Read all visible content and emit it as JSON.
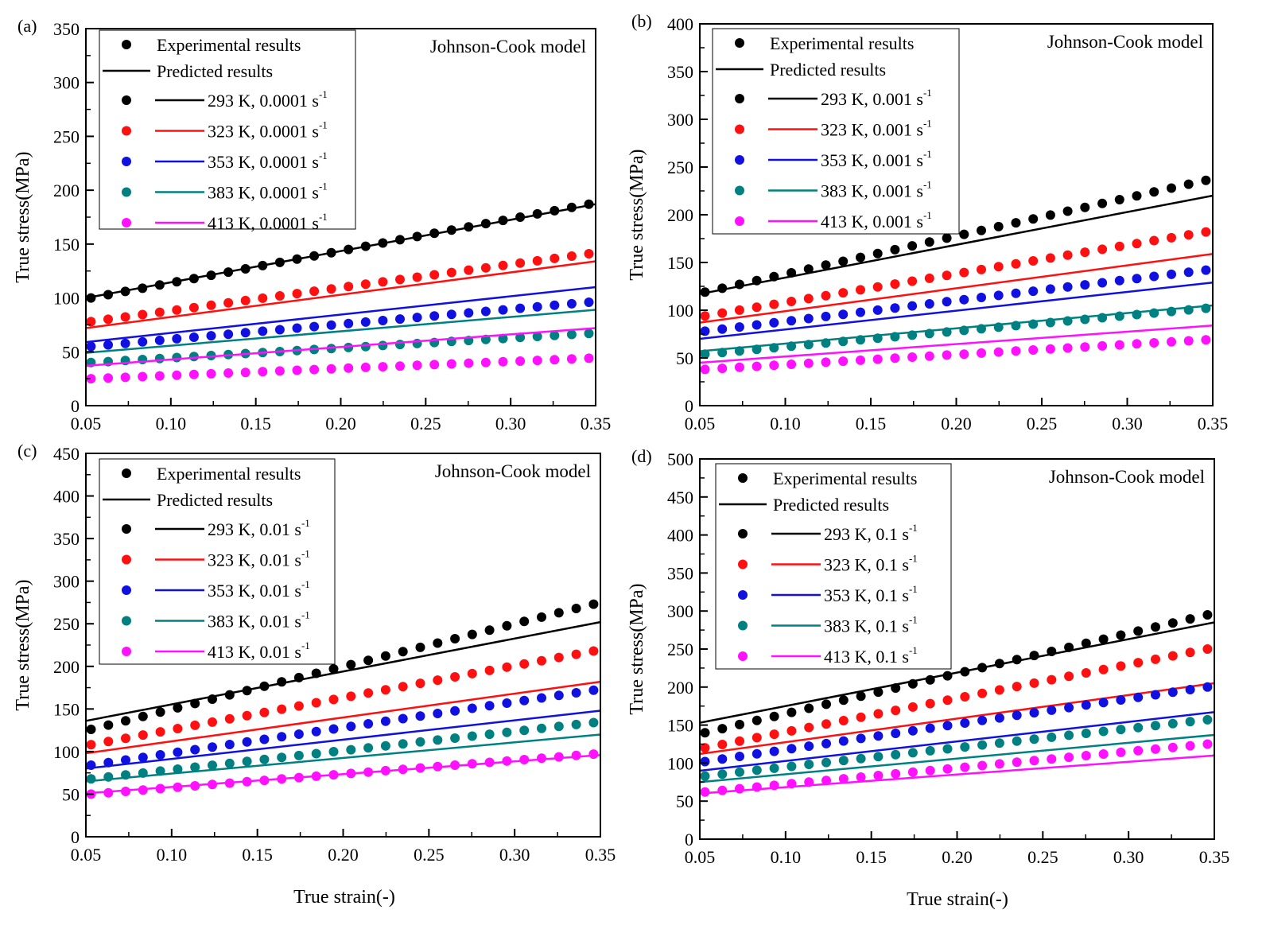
{
  "figure": {
    "x_axis_title": "True strain(-)",
    "colors": {
      "293 K": "#000000",
      "323 K": "#ff1010",
      "353 K": "#1010e0",
      "383 K": "#008080",
      "413 K": "#ff10ff"
    }
  },
  "chart_data": [
    {
      "type": "scatter",
      "panel_label": "(a)",
      "title": "Johnson-Cook model",
      "xlabel": "True strain(-)",
      "ylabel": "True stress(MPa)",
      "xlim": [
        0.05,
        0.35
      ],
      "ylim": [
        0,
        350
      ],
      "xticks": [
        "0.05",
        "0.10",
        "0.15",
        "0.20",
        "0.25",
        "0.30",
        "0.35"
      ],
      "yticks": [
        "0",
        "50",
        "100",
        "150",
        "200",
        "250",
        "300",
        "350"
      ],
      "legend": {
        "header_points": "Experimental results",
        "header_line": "Predicted results",
        "rate": "0.0001",
        "unit": "s",
        "unit_sup": "-1"
      },
      "series": [
        {
          "name": "293 K",
          "temperature": "293 K",
          "experimental": [
            100,
            187
          ],
          "predicted": [
            100,
            187
          ]
        },
        {
          "name": "323 K",
          "temperature": "323 K",
          "experimental": [
            78,
            141
          ],
          "predicted": [
            72,
            134
          ]
        },
        {
          "name": "353 K",
          "temperature": "353 K",
          "experimental": [
            55,
            96
          ],
          "predicted": [
            59,
            110
          ]
        },
        {
          "name": "383 K",
          "temperature": "383 K",
          "experimental": [
            40,
            67
          ],
          "predicted": [
            49,
            89
          ]
        },
        {
          "name": "413 K",
          "temperature": "413 K",
          "experimental": [
            25,
            44
          ],
          "predicted": [
            37,
            72
          ]
        }
      ]
    },
    {
      "type": "scatter",
      "panel_label": "(b)",
      "title": "Johnson-Cook model",
      "xlabel": "True strain(-)",
      "ylabel": "True stress(MPa)",
      "xlim": [
        0.05,
        0.35
      ],
      "ylim": [
        0,
        400
      ],
      "xticks": [
        "0.05",
        "0.10",
        "0.15",
        "0.20",
        "0.25",
        "0.30",
        "0.35"
      ],
      "yticks": [
        "0",
        "50",
        "100",
        "150",
        "200",
        "250",
        "300",
        "350",
        "400"
      ],
      "legend": {
        "header_points": "Experimental results",
        "header_line": "Predicted results",
        "rate": "0.001",
        "unit": "s",
        "unit_sup": "-1"
      },
      "series": [
        {
          "name": "293 K",
          "temperature": "293 K",
          "experimental": [
            119,
            236
          ],
          "predicted": [
            117,
            220
          ]
        },
        {
          "name": "323 K",
          "temperature": "323 K",
          "experimental": [
            94,
            182
          ],
          "predicted": [
            87,
            159
          ]
        },
        {
          "name": "353 K",
          "temperature": "353 K",
          "experimental": [
            78,
            142
          ],
          "predicted": [
            70,
            129
          ]
        },
        {
          "name": "383 K",
          "temperature": "383 K",
          "experimental": [
            54,
            102
          ],
          "predicted": [
            57,
            105
          ]
        },
        {
          "name": "413 K",
          "temperature": "413 K",
          "experimental": [
            38,
            69
          ],
          "predicted": [
            45,
            84
          ]
        }
      ]
    },
    {
      "type": "scatter",
      "panel_label": "(c)",
      "title": "Johnson-Cook model",
      "xlabel": "True strain(-)",
      "ylabel": "True stress(MPa)",
      "xlim": [
        0.05,
        0.35
      ],
      "ylim": [
        0,
        450
      ],
      "xticks": [
        "0.05",
        "0.10",
        "0.15",
        "0.20",
        "0.25",
        "0.30",
        "0.35"
      ],
      "yticks": [
        "0",
        "50",
        "100",
        "150",
        "200",
        "250",
        "300",
        "350",
        "400",
        "450"
      ],
      "legend": {
        "header_points": "Experimental results",
        "header_line": "Predicted results",
        "rate": "0.01",
        "unit": "s",
        "unit_sup": "-1"
      },
      "series": [
        {
          "name": "293 K",
          "temperature": "293 K",
          "experimental": [
            126,
            273
          ],
          "predicted": [
            136,
            252
          ]
        },
        {
          "name": "323 K",
          "temperature": "323 K",
          "experimental": [
            108,
            218
          ],
          "predicted": [
            98,
            182
          ]
        },
        {
          "name": "353 K",
          "temperature": "353 K",
          "experimental": [
            84,
            172
          ],
          "predicted": [
            80,
            148
          ]
        },
        {
          "name": "383 K",
          "temperature": "383 K",
          "experimental": [
            68,
            134
          ],
          "predicted": [
            65,
            120
          ]
        },
        {
          "name": "413 K",
          "temperature": "413 K",
          "experimental": [
            50,
            97
          ],
          "predicted": [
            51,
            96
          ]
        }
      ]
    },
    {
      "type": "scatter",
      "panel_label": "(d)",
      "title": "Johnson-Cook model",
      "xlabel": "True strain(-)",
      "ylabel": "True stress(MPa)",
      "xlim": [
        0.05,
        0.35
      ],
      "ylim": [
        0,
        500
      ],
      "xticks": [
        "0.05",
        "0.10",
        "0.15",
        "0.20",
        "0.25",
        "0.30",
        "0.35"
      ],
      "yticks": [
        "0",
        "50",
        "100",
        "150",
        "200",
        "250",
        "300",
        "350",
        "400",
        "450",
        "500"
      ],
      "legend": {
        "header_points": "Experimental results",
        "header_line": "Predicted results",
        "rate": "0.1",
        "unit": "s",
        "unit_sup": "-1"
      },
      "series": [
        {
          "name": "293 K",
          "temperature": "293 K",
          "experimental": [
            140,
            295
          ],
          "predicted": [
            153,
            285
          ]
        },
        {
          "name": "323 K",
          "temperature": "323 K",
          "experimental": [
            120,
            250
          ],
          "predicted": [
            112,
            205
          ]
        },
        {
          "name": "353 K",
          "temperature": "353 K",
          "experimental": [
            102,
            200
          ],
          "predicted": [
            90,
            167
          ]
        },
        {
          "name": "383 K",
          "temperature": "383 K",
          "experimental": [
            83,
            157
          ],
          "predicted": [
            75,
            137
          ]
        },
        {
          "name": "413 K",
          "temperature": "413 K",
          "experimental": [
            62,
            125
          ],
          "predicted": [
            60,
            110
          ]
        }
      ]
    }
  ]
}
